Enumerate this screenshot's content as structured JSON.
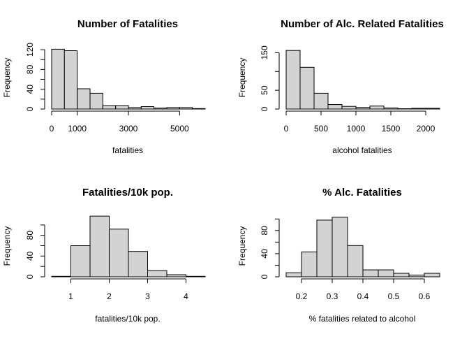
{
  "chart_data": [
    {
      "type": "bar",
      "subtype": "histogram",
      "title": "Number of Fatalities",
      "xlabel": "fatalities",
      "ylabel": "Frequency",
      "bin_edges": [
        0,
        500,
        1000,
        1500,
        2000,
        2500,
        3000,
        3500,
        4000,
        4500,
        5000,
        5500,
        6000
      ],
      "values": [
        121,
        118,
        41,
        32,
        7,
        7,
        3,
        5,
        2,
        3,
        3,
        1
      ],
      "xlim": [
        0,
        6000
      ],
      "ylim": [
        0,
        130
      ],
      "xticks": [
        0,
        1000,
        3000,
        5000
      ],
      "xtick_labels": [
        "0",
        "1000",
        "3000",
        "5000"
      ],
      "yticks": [
        0,
        20,
        40,
        60,
        80,
        100,
        120
      ],
      "ytick_labels": [
        "0",
        "",
        "40",
        "",
        "80",
        "",
        "120"
      ],
      "bar_color": "#d3d3d3",
      "grid": false
    },
    {
      "type": "bar",
      "subtype": "histogram",
      "title": "Number of Alc. Related Fatalities",
      "xlabel": "alcohol fatalities",
      "ylabel": "Frequency",
      "bin_edges": [
        0,
        200,
        400,
        600,
        800,
        1000,
        1200,
        1400,
        1600,
        1800,
        2000,
        2200
      ],
      "values": [
        156,
        111,
        42,
        12,
        7,
        4,
        8,
        3,
        1,
        2,
        2
      ],
      "xlim": [
        0,
        2200
      ],
      "ylim": [
        0,
        160
      ],
      "xticks": [
        0,
        500,
        1000,
        1500,
        2000
      ],
      "xtick_labels": [
        "0",
        "500",
        "1000",
        "1500",
        "2000"
      ],
      "yticks": [
        0,
        50,
        100,
        150
      ],
      "ytick_labels": [
        "0",
        "50",
        "",
        "150"
      ],
      "bar_color": "#d3d3d3",
      "grid": false
    },
    {
      "type": "bar",
      "subtype": "histogram",
      "title": "Fatalities/10k pop.",
      "xlabel": "fatalities/10k pop.",
      "ylabel": "Frequency",
      "bin_edges": [
        0.5,
        1.0,
        1.5,
        2.0,
        2.5,
        3.0,
        3.5,
        4.0,
        4.5
      ],
      "values": [
        1,
        60,
        117,
        92,
        49,
        12,
        4,
        1
      ],
      "xlim": [
        0.5,
        4.5
      ],
      "ylim": [
        0,
        120
      ],
      "xticks": [
        1,
        2,
        3,
        4
      ],
      "xtick_labels": [
        "1",
        "2",
        "3",
        "4"
      ],
      "yticks": [
        0,
        20,
        40,
        60,
        80,
        100
      ],
      "ytick_labels": [
        "0",
        "",
        "40",
        "",
        "80",
        ""
      ],
      "bar_color": "#d3d3d3",
      "grid": false
    },
    {
      "type": "bar",
      "subtype": "histogram",
      "title": "% Alc. Fatalities",
      "xlabel": "% fatalities related to alcohol",
      "ylabel": "Frequency",
      "bin_edges": [
        0.15,
        0.2,
        0.25,
        0.3,
        0.35,
        0.4,
        0.45,
        0.5,
        0.55,
        0.6,
        0.65
      ],
      "values": [
        7,
        43,
        98,
        103,
        54,
        12,
        12,
        6,
        3,
        6
      ],
      "xlim": [
        0.15,
        0.65
      ],
      "ylim": [
        0,
        110
      ],
      "xticks": [
        0.2,
        0.3,
        0.4,
        0.5,
        0.6
      ],
      "xtick_labels": [
        "0.2",
        "0.3",
        "0.4",
        "0.5",
        "0.6"
      ],
      "yticks": [
        0,
        20,
        40,
        60,
        80,
        100
      ],
      "ytick_labels": [
        "0",
        "",
        "40",
        "",
        "80",
        ""
      ],
      "bar_color": "#d3d3d3",
      "grid": false
    }
  ]
}
